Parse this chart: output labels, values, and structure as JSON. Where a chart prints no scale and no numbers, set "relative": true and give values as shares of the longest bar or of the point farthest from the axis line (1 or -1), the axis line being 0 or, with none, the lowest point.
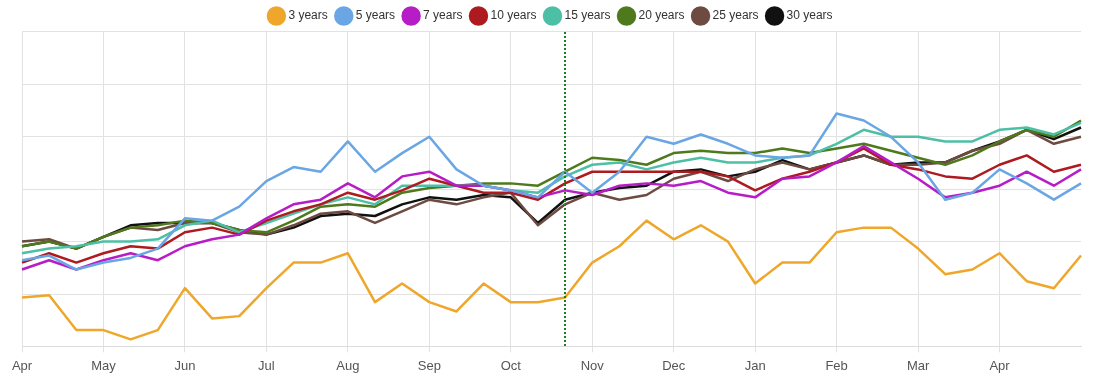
{
  "chart_data": {
    "type": "line",
    "relative": true,
    "legend": "top",
    "grid": true,
    "marker": "none",
    "line_style": "solid",
    "categories": [
      "Apr",
      null,
      null,
      "May",
      null,
      null,
      "Jun",
      null,
      null,
      "Jul",
      null,
      null,
      "Aug",
      null,
      null,
      "Sep",
      null,
      null,
      "Oct",
      null,
      null,
      "Nov",
      null,
      null,
      "Dec",
      null,
      null,
      "Jan",
      null,
      null,
      "Feb",
      null,
      null,
      "Mar",
      null,
      null,
      "Apr",
      null,
      null,
      null
    ],
    "series": [
      {
        "name": "3 years",
        "color": "#eea72b",
        "values": [
          0.21,
          0.22,
          0.07,
          0.07,
          0.03,
          0.07,
          0.25,
          0.12,
          0.13,
          0.25,
          0.36,
          0.36,
          0.4,
          0.19,
          0.27,
          0.19,
          0.15,
          0.27,
          0.19,
          0.19,
          0.21,
          0.36,
          0.43,
          0.54,
          0.46,
          0.52,
          0.45,
          0.27,
          0.36,
          0.36,
          0.49,
          0.51,
          0.51,
          0.42,
          0.31,
          0.33,
          0.4,
          0.28,
          0.25,
          0.39
        ]
      },
      {
        "name": "5 years",
        "color": "#6aa6e4",
        "values": [
          0.37,
          0.39,
          0.33,
          0.36,
          0.38,
          0.42,
          0.55,
          0.54,
          0.6,
          0.71,
          0.77,
          0.75,
          0.88,
          0.75,
          0.83,
          0.9,
          0.76,
          0.69,
          0.67,
          0.64,
          0.75,
          0.66,
          0.75,
          0.9,
          0.87,
          0.91,
          0.87,
          0.82,
          0.81,
          0.82,
          1.0,
          0.97,
          0.9,
          0.79,
          0.63,
          0.66,
          0.76,
          0.7,
          0.63,
          0.7
        ]
      },
      {
        "name": "7 years",
        "color": "#b61dc6",
        "values": [
          0.33,
          0.37,
          0.33,
          0.37,
          0.4,
          0.37,
          0.43,
          0.46,
          0.48,
          0.55,
          0.61,
          0.63,
          0.7,
          0.64,
          0.73,
          0.75,
          0.69,
          0.69,
          0.67,
          0.64,
          0.67,
          0.65,
          0.69,
          0.7,
          0.69,
          0.71,
          0.66,
          0.64,
          0.72,
          0.73,
          0.79,
          0.86,
          0.79,
          0.72,
          0.64,
          0.66,
          0.69,
          0.75,
          0.69,
          0.76
        ]
      },
      {
        "name": "10 years",
        "color": "#ad1a1f",
        "values": [
          0.36,
          0.4,
          0.36,
          0.4,
          0.43,
          0.42,
          0.49,
          0.51,
          0.48,
          0.54,
          0.58,
          0.61,
          0.66,
          0.63,
          0.67,
          0.72,
          0.69,
          0.66,
          0.66,
          0.63,
          0.7,
          0.75,
          0.75,
          0.75,
          0.75,
          0.75,
          0.73,
          0.67,
          0.72,
          0.75,
          0.79,
          0.85,
          0.78,
          0.76,
          0.73,
          0.72,
          0.78,
          0.82,
          0.75,
          0.78
        ]
      },
      {
        "name": "15 years",
        "color": "#4dbfa6",
        "values": [
          0.4,
          0.42,
          0.43,
          0.45,
          0.45,
          0.46,
          0.52,
          0.54,
          0.49,
          0.53,
          0.57,
          0.61,
          0.64,
          0.61,
          0.69,
          0.69,
          0.69,
          0.69,
          0.67,
          0.66,
          0.73,
          0.78,
          0.79,
          0.76,
          0.79,
          0.81,
          0.79,
          0.79,
          0.81,
          0.82,
          0.87,
          0.93,
          0.9,
          0.9,
          0.88,
          0.88,
          0.93,
          0.94,
          0.91,
          0.96
        ]
      },
      {
        "name": "20 years",
        "color": "#4e7a1d",
        "values": [
          0.43,
          0.45,
          0.42,
          0.47,
          0.51,
          0.52,
          0.54,
          0.53,
          0.5,
          0.49,
          0.54,
          0.6,
          0.61,
          0.6,
          0.66,
          0.68,
          0.69,
          0.7,
          0.7,
          0.69,
          0.75,
          0.81,
          0.8,
          0.78,
          0.83,
          0.84,
          0.83,
          0.83,
          0.85,
          0.83,
          0.85,
          0.87,
          0.84,
          0.81,
          0.78,
          0.82,
          0.88,
          0.93,
          0.9,
          0.97
        ]
      },
      {
        "name": "25 years",
        "color": "#6d4b40",
        "values": [
          0.45,
          0.46,
          0.42,
          0.47,
          0.51,
          0.5,
          0.53,
          0.53,
          0.49,
          0.48,
          0.52,
          0.57,
          0.58,
          0.53,
          0.58,
          0.63,
          0.61,
          0.64,
          0.66,
          0.52,
          0.61,
          0.66,
          0.63,
          0.65,
          0.72,
          0.75,
          0.71,
          0.76,
          0.79,
          0.76,
          0.79,
          0.82,
          0.78,
          0.78,
          0.79,
          0.84,
          0.87,
          0.93,
          0.87,
          0.9
        ]
      },
      {
        "name": "30 years",
        "color": "#111111",
        "values": [
          0.43,
          0.45,
          0.42,
          0.47,
          0.52,
          0.53,
          0.53,
          0.53,
          0.5,
          0.48,
          0.51,
          0.56,
          0.57,
          0.56,
          0.61,
          0.64,
          0.63,
          0.65,
          0.64,
          0.53,
          0.63,
          0.66,
          0.68,
          0.69,
          0.75,
          0.76,
          0.73,
          0.75,
          0.8,
          0.76,
          0.79,
          0.82,
          0.78,
          0.79,
          0.79,
          0.84,
          0.88,
          0.93,
          0.89,
          0.94
        ]
      }
    ]
  }
}
